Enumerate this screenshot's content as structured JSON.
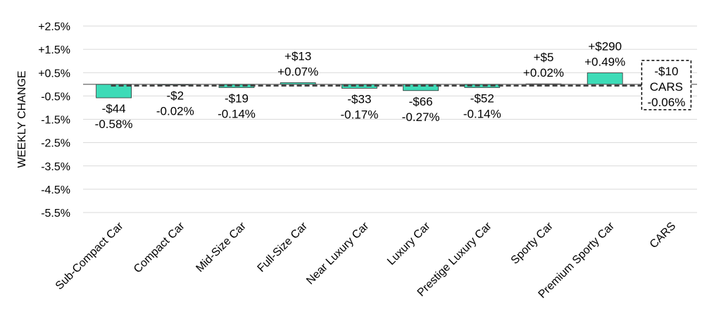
{
  "chart_data": {
    "type": "bar",
    "ylabel": "WEEKLY CHANGE",
    "ylim": [
      -5.5,
      2.5
    ],
    "y_ticks": [
      "+2.5%",
      "+1.5%",
      "+0.5%",
      "-0.5%",
      "-1.5%",
      "-2.5%",
      "-3.5%",
      "-4.5%",
      "-5.5%"
    ],
    "y_tick_values": [
      2.5,
      1.5,
      0.5,
      -0.5,
      -1.5,
      -2.5,
      -3.5,
      -4.5,
      -5.5
    ],
    "categories": [
      "Sub-Compact Car",
      "Compact Car",
      "Mid-Size Car",
      "Full-Size Car",
      "Near Luxury Car",
      "Luxury Car",
      "Prestige Luxury Car",
      "Sporty Car",
      "Premium Sporty Car",
      "CARS"
    ],
    "values": [
      -0.58,
      -0.02,
      -0.14,
      0.07,
      -0.17,
      -0.27,
      -0.14,
      0.02,
      0.49,
      -0.06
    ],
    "dollar_labels": [
      "-$44",
      "-$2",
      "-$19",
      "+$13",
      "-$33",
      "-$66",
      "-$52",
      "+$5",
      "+$290",
      "-$10"
    ],
    "percent_labels": [
      "-0.58%",
      "-0.02%",
      "-0.14%",
      "+0.07%",
      "-0.17%",
      "-0.27%",
      "-0.14%",
      "+0.02%",
      "+0.49%",
      "-0.06%"
    ],
    "total_label": "CARS",
    "reference_line_value": -0.06,
    "grid": true,
    "colors": {
      "bar": "#3ddbb7",
      "bar_stroke": "#333333",
      "grid": "#d9d9d9",
      "reference": "#404040"
    }
  }
}
